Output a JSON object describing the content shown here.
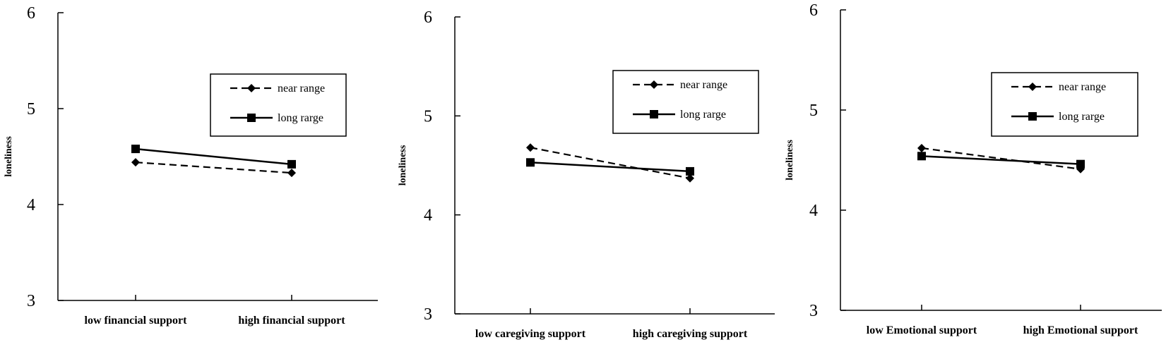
{
  "chart_data": [
    {
      "type": "line",
      "title": "",
      "xlabel": "",
      "ylabel": "loneliness",
      "ylim": [
        3,
        6
      ],
      "yticks": [
        "3",
        "4",
        "5",
        "6"
      ],
      "categories": [
        "low  financial support",
        "high  financial support"
      ],
      "series": [
        {
          "name": "near range",
          "values": [
            4.44,
            4.33
          ],
          "line": "dashed",
          "marker": "diamond"
        },
        {
          "name": "long rarge",
          "values": [
            4.58,
            4.42
          ],
          "line": "solid",
          "marker": "square"
        }
      ],
      "legend_position": "upper-right",
      "grid": false
    },
    {
      "type": "line",
      "title": "",
      "xlabel": "",
      "ylabel": "loneliness",
      "ylim": [
        3,
        6
      ],
      "yticks": [
        "3",
        "4",
        "5",
        "6"
      ],
      "categories": [
        "low  caregiving support",
        "high  caregiving support"
      ],
      "series": [
        {
          "name": "near range",
          "values": [
            4.68,
            4.37
          ],
          "line": "dashed",
          "marker": "diamond"
        },
        {
          "name": "long rarge",
          "values": [
            4.53,
            4.44
          ],
          "line": "solid",
          "marker": "square"
        }
      ],
      "legend_position": "upper-right",
      "grid": false
    },
    {
      "type": "line",
      "title": "",
      "xlabel": "",
      "ylabel": "loneliness",
      "ylim": [
        3,
        6
      ],
      "yticks": [
        "3",
        "4",
        "5",
        "6"
      ],
      "categories": [
        "low Emotional support",
        "high Emotional support"
      ],
      "series": [
        {
          "name": "near range",
          "values": [
            4.62,
            4.41
          ],
          "line": "dashed",
          "marker": "diamond"
        },
        {
          "name": "long rarge",
          "values": [
            4.54,
            4.46
          ],
          "line": "solid",
          "marker": "square"
        }
      ],
      "legend_position": "upper-right",
      "grid": false
    }
  ],
  "colors": {
    "ink": "#000000",
    "background": "#ffffff"
  }
}
